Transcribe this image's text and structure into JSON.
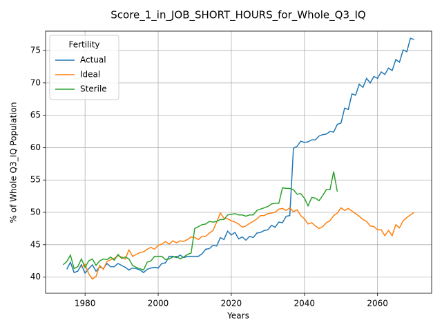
{
  "chart_data": {
    "type": "line",
    "title": "Score_1_in_JOB_SHORT_HOURS_for_Whole_Q3_IQ",
    "xlabel": "Years",
    "ylabel": "% of Whole Q3_IQ Population",
    "legend_title": "Fertility",
    "legend": "upper left",
    "grid": true,
    "x": [
      1974,
      1975,
      1976,
      1977,
      1978,
      1979,
      1980,
      1981,
      1982,
      1983,
      1984,
      1985,
      1986,
      1987,
      1988,
      1989,
      1990,
      1991,
      1992,
      1993,
      1994,
      1995,
      1996,
      1997,
      1998,
      1999,
      2000,
      2001,
      2002,
      2003,
      2004,
      2005,
      2006,
      2007,
      2008,
      2009,
      2010,
      2011,
      2012,
      2013,
      2014,
      2015,
      2016,
      2017,
      2018,
      2019,
      2020,
      2021,
      2022,
      2023,
      2024,
      2025,
      2026,
      2027,
      2028,
      2029,
      2030,
      2031,
      2032,
      2033,
      2034,
      2035,
      2036,
      2037,
      2038,
      2039,
      2040,
      2041,
      2042,
      2043,
      2044,
      2045,
      2046,
      2047,
      2048,
      2049,
      2050,
      2051,
      2052,
      2053,
      2054,
      2055,
      2056,
      2057,
      2058,
      2059,
      2060,
      2061,
      2062,
      2063,
      2064,
      2065,
      2066,
      2067,
      2068,
      2069,
      2070
    ],
    "series": [
      {
        "name": "Actual",
        "color": "#1f77b4",
        "values": [
          null,
          41.2,
          42.3,
          40.7,
          40.9,
          41.9,
          40.6,
          41.3,
          41.9,
          40.9,
          41.6,
          41.3,
          42.1,
          41.6,
          41.6,
          42.1,
          41.8,
          41.5,
          41.1,
          41.4,
          41.3,
          41.1,
          40.7,
          41.2,
          41.4,
          41.5,
          41.4,
          42.1,
          42.2,
          43.2,
          43.2,
          43.0,
          43.4,
          43.0,
          43.2,
          43.2,
          43.2,
          43.2,
          43.6,
          44.3,
          44.4,
          44.9,
          44.8,
          46.1,
          45.8,
          47.1,
          46.5,
          46.9,
          45.9,
          46.2,
          45.7,
          46.3,
          46.1,
          46.8,
          46.9,
          47.2,
          47.3,
          48.0,
          47.7,
          48.5,
          48.4,
          49.4,
          49.5,
          59.9,
          60.2,
          61.0,
          60.8,
          60.9,
          61.2,
          61.2,
          61.8,
          62.0,
          62.1,
          62.5,
          62.4,
          63.6,
          63.8,
          66.1,
          65.9,
          68.3,
          68.1,
          69.8,
          69.3,
          70.7,
          70.0,
          71.0,
          70.7,
          71.7,
          71.3,
          72.3,
          71.9,
          73.6,
          73.2,
          75.1,
          74.8,
          76.9,
          76.7
        ]
      },
      {
        "name": "Ideal",
        "color": "#ff7f0e",
        "values": [
          null,
          null,
          null,
          null,
          null,
          41.5,
          42.0,
          40.5,
          39.7,
          40.1,
          41.8,
          41.2,
          42.4,
          42.7,
          42.9,
          43.3,
          43.1,
          42.8,
          44.2,
          43.2,
          43.5,
          43.8,
          43.9,
          44.3,
          44.6,
          44.3,
          44.9,
          45.1,
          45.5,
          45.1,
          45.6,
          45.3,
          45.6,
          45.5,
          45.8,
          46.2,
          46.1,
          45.8,
          46.3,
          46.3,
          46.8,
          47.2,
          48.5,
          49.9,
          49.1,
          49.0,
          48.7,
          48.5,
          48.2,
          47.7,
          47.9,
          48.3,
          48.6,
          49.0,
          49.5,
          49.5,
          49.8,
          49.9,
          50.0,
          50.5,
          50.6,
          50.3,
          50.7,
          50.1,
          50.4,
          49.5,
          49.0,
          48.2,
          48.4,
          47.9,
          47.5,
          47.8,
          48.4,
          48.7,
          49.5,
          49.9,
          50.7,
          50.3,
          50.6,
          50.2,
          49.8,
          49.4,
          48.9,
          48.6,
          47.9,
          47.8,
          47.3,
          47.3,
          46.4,
          47.2,
          46.4,
          48.1,
          47.6,
          48.7,
          49.2,
          49.6,
          50.0
        ]
      },
      {
        "name": "Sterile",
        "color": "#2ca02c",
        "values": [
          41.9,
          42.4,
          43.4,
          41.3,
          41.6,
          42.8,
          41.5,
          42.5,
          42.8,
          41.8,
          42.5,
          42.8,
          42.7,
          43.1,
          42.6,
          43.5,
          42.9,
          43.1,
          42.8,
          41.8,
          41.5,
          41.3,
          41.1,
          42.3,
          42.5,
          43.2,
          43.2,
          43.2,
          42.7,
          42.8,
          43.1,
          43.2,
          42.8,
          43.1,
          43.5,
          43.7,
          47.5,
          47.8,
          48.1,
          48.2,
          48.6,
          48.5,
          48.6,
          48.9,
          48.9,
          49.6,
          49.7,
          49.8,
          49.6,
          49.6,
          49.4,
          49.6,
          49.6,
          50.3,
          50.5,
          50.7,
          50.9,
          51.3,
          51.4,
          51.4,
          53.8,
          53.7,
          53.7,
          53.5,
          52.8,
          52.9,
          52.2,
          51.0,
          52.3,
          52.2,
          51.8,
          52.6,
          53.5,
          53.5,
          56.3,
          53.2,
          null,
          null,
          null,
          null,
          null,
          null,
          null,
          null,
          null,
          null,
          null,
          null,
          null,
          null,
          null,
          null,
          null,
          null,
          null,
          null,
          null
        ]
      }
    ],
    "xlim": [
      1969.2,
      2074.8
    ],
    "xticks": [
      1980,
      2000,
      2020,
      2040,
      2060
    ],
    "ylim": [
      37.5,
      78.0
    ],
    "yticks": [
      40,
      45,
      50,
      55,
      60,
      65,
      70,
      75
    ]
  }
}
